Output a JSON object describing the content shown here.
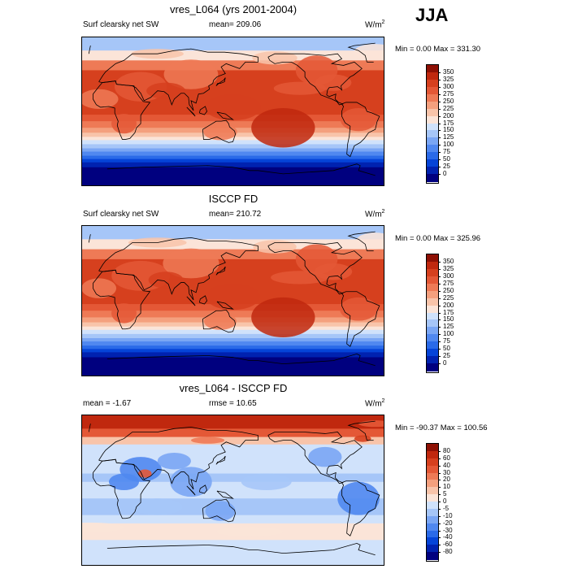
{
  "season": "JJA",
  "colors": {
    "panel_ab_scale": [
      "#00007f",
      "#0022b0",
      "#0544d8",
      "#2a6ae8",
      "#5088f0",
      "#7aa6f4",
      "#a6c6f8",
      "#d0e2fb",
      "#fbe4d8",
      "#f8c4aa",
      "#f4a07e",
      "#ee7a56",
      "#e45836",
      "#d6401e",
      "#c0280e",
      "#8e1004"
    ],
    "panel_c_scale": [
      "#00007f",
      "#0022b0",
      "#0544d8",
      "#2a6ae8",
      "#5088f0",
      "#7aa6f4",
      "#a6c6f8",
      "#d0e2fb",
      "#fbe4d8",
      "#f8c4aa",
      "#f4a07e",
      "#ee7a56",
      "#e45836",
      "#d6401e",
      "#c0280e",
      "#8e1004"
    ]
  },
  "chart_data": [
    {
      "type": "heatmap",
      "title": "vres_L064 (yrs 2001-2004)",
      "subtitle_left": "Surf clearsky net SW",
      "subtitle_center": "mean= 209.06",
      "units_base": "W/m",
      "units_exp": "2",
      "minmax": "Min =   0.00 Max = 331.30",
      "min": 0.0,
      "max": 331.3,
      "mean": 209.06,
      "colorbar_levels": [
        "350",
        "325",
        "300",
        "275",
        "250",
        "225",
        "200",
        "175",
        "150",
        "125",
        "100",
        "75",
        "50",
        "25",
        "0"
      ]
    },
    {
      "type": "heatmap",
      "title": "ISCCP FD",
      "subtitle_left": "Surf clearsky net SW",
      "subtitle_center": "mean= 210.72",
      "units_base": "W/m",
      "units_exp": "2",
      "minmax": "Min =   0.00 Max = 325.96",
      "min": 0.0,
      "max": 325.96,
      "mean": 210.72,
      "colorbar_levels": [
        "350",
        "325",
        "300",
        "275",
        "250",
        "225",
        "200",
        "175",
        "150",
        "125",
        "100",
        "75",
        "50",
        "25",
        "0"
      ]
    },
    {
      "type": "heatmap",
      "title": "vres_L064 - ISCCP FD",
      "subtitle_left": "mean =  -1.67",
      "subtitle_center": "rmse =  10.65",
      "units_base": "W/m",
      "units_exp": "2",
      "minmax": "Min = -90.37 Max = 100.56",
      "min": -90.37,
      "max": 100.56,
      "mean": -1.67,
      "rmse": 10.65,
      "colorbar_levels": [
        "80",
        "60",
        "40",
        "30",
        "20",
        "10",
        "5",
        "0",
        "-5",
        "-10",
        "-20",
        "-30",
        "-40",
        "-60",
        "-80"
      ]
    }
  ]
}
